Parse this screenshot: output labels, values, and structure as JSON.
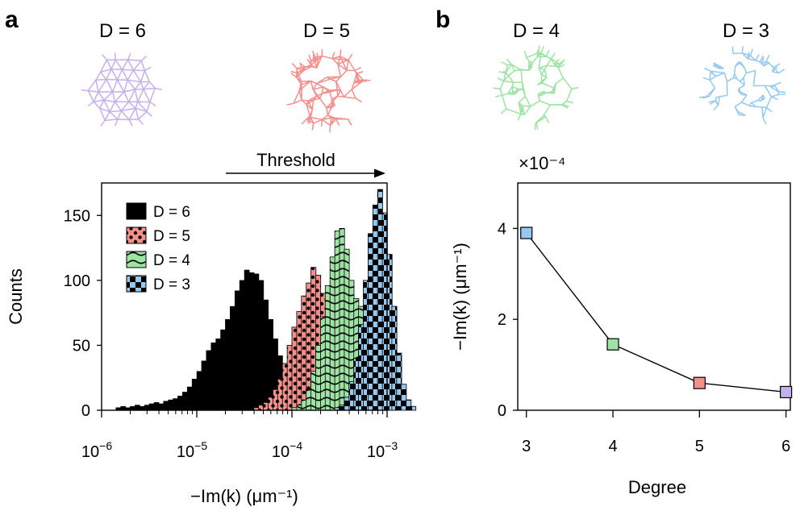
{
  "colors": {
    "d6": "#c4b0ee",
    "d5": "#f4908c",
    "d4": "#9ee3a4",
    "d3": "#96c8f0"
  },
  "panels": {
    "a": {
      "letter": "a",
      "net_label_left": "D = 6",
      "net_label_right": "D = 5",
      "threshold_label": "Threshold"
    },
    "b": {
      "letter": "b",
      "net_label_left": "D = 4",
      "net_label_right": "D = 3",
      "scale_note": "×10⁻⁴"
    }
  },
  "chart_data": [
    {
      "type": "histogram",
      "title": "",
      "xlabel": "−Im(k) (μm⁻¹)",
      "ylabel": "Counts",
      "xscale": "log",
      "xlim": [
        1e-06,
        0.001
      ],
      "ylim": [
        0,
        175
      ],
      "xtick_values": [
        1e-06,
        1e-05,
        0.0001,
        0.001
      ],
      "xtick_labels": [
        {
          "base": "10",
          "exp": "−6"
        },
        {
          "base": "10",
          "exp": "−5"
        },
        {
          "base": "10",
          "exp": "−4"
        },
        {
          "base": "10",
          "exp": "−3"
        }
      ],
      "ytick_values": [
        0,
        50,
        100,
        150
      ],
      "ytick_labels": [
        "0",
        "50",
        "100",
        "150"
      ],
      "bin_log_width": 0.05,
      "legend_position": "top-left",
      "series": [
        {
          "name": "D = 6",
          "pattern": "solid black",
          "start_log": -5.85,
          "counts": [
            2,
            3,
            2,
            3,
            4,
            3,
            4,
            5,
            6,
            5,
            7,
            8,
            9,
            11,
            14,
            18,
            24,
            30,
            38,
            46,
            52,
            55,
            62,
            70,
            80,
            92,
            100,
            108,
            106,
            105,
            100,
            85,
            70,
            55,
            42,
            32,
            24,
            16,
            10,
            6,
            3,
            2,
            1
          ]
        },
        {
          "name": "D = 5",
          "pattern": "dots",
          "start_log": -4.4,
          "counts": [
            2,
            4,
            6,
            10,
            16,
            24,
            36,
            50,
            64,
            76,
            88,
            98,
            110,
            104,
            90,
            72,
            52,
            36,
            22,
            12,
            6,
            3,
            1
          ]
        },
        {
          "name": "D = 4",
          "pattern": "waves",
          "start_log": -4.0,
          "counts": [
            2,
            4,
            8,
            16,
            30,
            50,
            72,
            96,
            118,
            138,
            140,
            124,
            100,
            86,
            80,
            72,
            60,
            44,
            28,
            14,
            6,
            2
          ]
        },
        {
          "name": "D = 3",
          "pattern": "checker",
          "start_log": -3.55,
          "counts": [
            2,
            4,
            10,
            22,
            40,
            66,
            100,
            136,
            158,
            170,
            152,
            120,
            80,
            44,
            20,
            8,
            3
          ]
        }
      ]
    },
    {
      "type": "line",
      "title": "",
      "xlabel": "Degree",
      "ylabel": "−Im(k) (μm⁻¹)",
      "x": [
        3,
        4,
        5,
        6
      ],
      "y": [
        3.9,
        1.45,
        0.6,
        0.4
      ],
      "y_scale_factor": "×10⁻⁴",
      "xlim": [
        2.9,
        6.05
      ],
      "ylim": [
        0,
        5
      ],
      "xtick_labels": [
        "3",
        "4",
        "5",
        "6"
      ],
      "ytick_values": [
        0,
        2,
        4
      ],
      "ytick_labels": [
        "0",
        "2",
        "4"
      ],
      "marker_colors": [
        "#96c8f0",
        "#9ee3a4",
        "#f4908c",
        "#c4b0ee"
      ]
    }
  ]
}
